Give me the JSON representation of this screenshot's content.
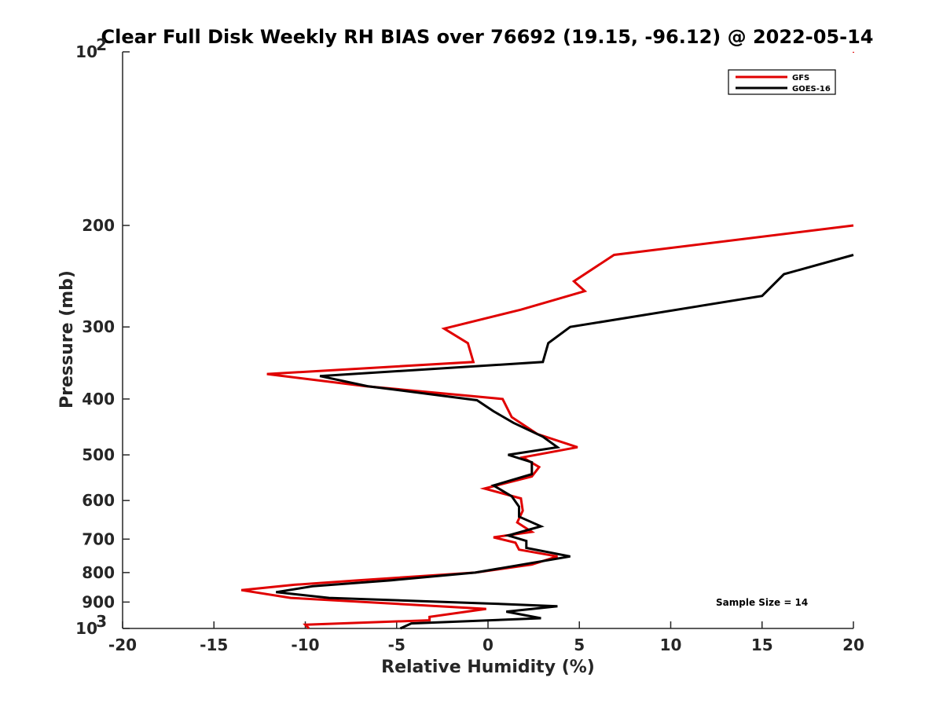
{
  "chart_data": {
    "type": "line",
    "title": "Clear Full Disk Weekly RH BIAS over 76692 (19.15, -96.12) @ 2022-05-14",
    "xlabel": "Relative Humidity (%)",
    "ylabel": "Pressure (mb)",
    "xlim": [
      -20,
      20
    ],
    "ylim": [
      100,
      1000
    ],
    "yscale": "log",
    "y_reversed": true,
    "grid": false,
    "legend_position": "top-right",
    "x_ticks": [
      "-20",
      "-15",
      "-10",
      "-5",
      "0",
      "5",
      "10",
      "15",
      "20"
    ],
    "y_ticks": [
      {
        "value": 100,
        "base": "10",
        "exp": "2"
      },
      {
        "value": 200,
        "label": "200"
      },
      {
        "value": 300,
        "label": "300"
      },
      {
        "value": 400,
        "label": "400"
      },
      {
        "value": 500,
        "label": "500"
      },
      {
        "value": 600,
        "label": "600"
      },
      {
        "value": 700,
        "label": "700"
      },
      {
        "value": 800,
        "label": "800"
      },
      {
        "value": 900,
        "label": "900"
      },
      {
        "value": 1000,
        "base": "10",
        "exp": "3"
      }
    ],
    "annotation": "Sample Size = 14",
    "series": [
      {
        "name": "GFS",
        "color": "#e00000",
        "points": [
          [
            20,
            200
          ],
          [
            6.9,
            225
          ],
          [
            4.7,
            250
          ],
          [
            5.3,
            260
          ],
          [
            1.8,
            280
          ],
          [
            -2.4,
            302
          ],
          [
            -1.1,
            320
          ],
          [
            -0.8,
            345
          ],
          [
            -12.1,
            362
          ],
          [
            -6.7,
            380
          ],
          [
            0.8,
            400
          ],
          [
            1.3,
            430
          ],
          [
            2.7,
            460
          ],
          [
            4.9,
            485
          ],
          [
            1.9,
            505
          ],
          [
            2.8,
            525
          ],
          [
            2.4,
            545
          ],
          [
            -0.2,
            572
          ],
          [
            1.8,
            595
          ],
          [
            1.9,
            625
          ],
          [
            1.6,
            655
          ],
          [
            2.4,
            680
          ],
          [
            0.3,
            695
          ],
          [
            1.5,
            710
          ],
          [
            1.7,
            730
          ],
          [
            3.8,
            750
          ],
          [
            2.4,
            775
          ],
          [
            -0.7,
            800
          ],
          [
            -7.1,
            825
          ],
          [
            -10.6,
            840
          ],
          [
            -13.5,
            858
          ],
          [
            -10.8,
            885
          ],
          [
            -0.1,
            925
          ],
          [
            -3.2,
            955
          ],
          [
            -3.2,
            968
          ],
          [
            -10.0,
            985
          ],
          [
            -9.8,
            1000
          ]
        ]
      },
      {
        "name": "GOES-16",
        "color": "#000000",
        "points": [
          [
            20,
            225
          ],
          [
            16.2,
            243
          ],
          [
            15.0,
            265
          ],
          [
            4.5,
            300
          ],
          [
            3.3,
            320
          ],
          [
            3.0,
            345
          ],
          [
            -9.2,
            365
          ],
          [
            -6.6,
            380
          ],
          [
            -0.6,
            402
          ],
          [
            0.3,
            420
          ],
          [
            1.4,
            440
          ],
          [
            3.0,
            465
          ],
          [
            3.8,
            485
          ],
          [
            1.1,
            500
          ],
          [
            2.4,
            515
          ],
          [
            2.4,
            540
          ],
          [
            0.3,
            565
          ],
          [
            1.3,
            590
          ],
          [
            1.7,
            615
          ],
          [
            1.7,
            640
          ],
          [
            2.9,
            665
          ],
          [
            1.1,
            690
          ],
          [
            2.1,
            705
          ],
          [
            2.1,
            725
          ],
          [
            4.5,
            750
          ],
          [
            -0.7,
            800
          ],
          [
            -5.3,
            825
          ],
          [
            -9.6,
            845
          ],
          [
            -11.6,
            865
          ],
          [
            -8.7,
            885
          ],
          [
            0.0,
            905
          ],
          [
            3.8,
            915
          ],
          [
            1.0,
            935
          ],
          [
            2.9,
            960
          ],
          [
            -4.2,
            980
          ],
          [
            -4.8,
            1000
          ]
        ]
      }
    ]
  }
}
